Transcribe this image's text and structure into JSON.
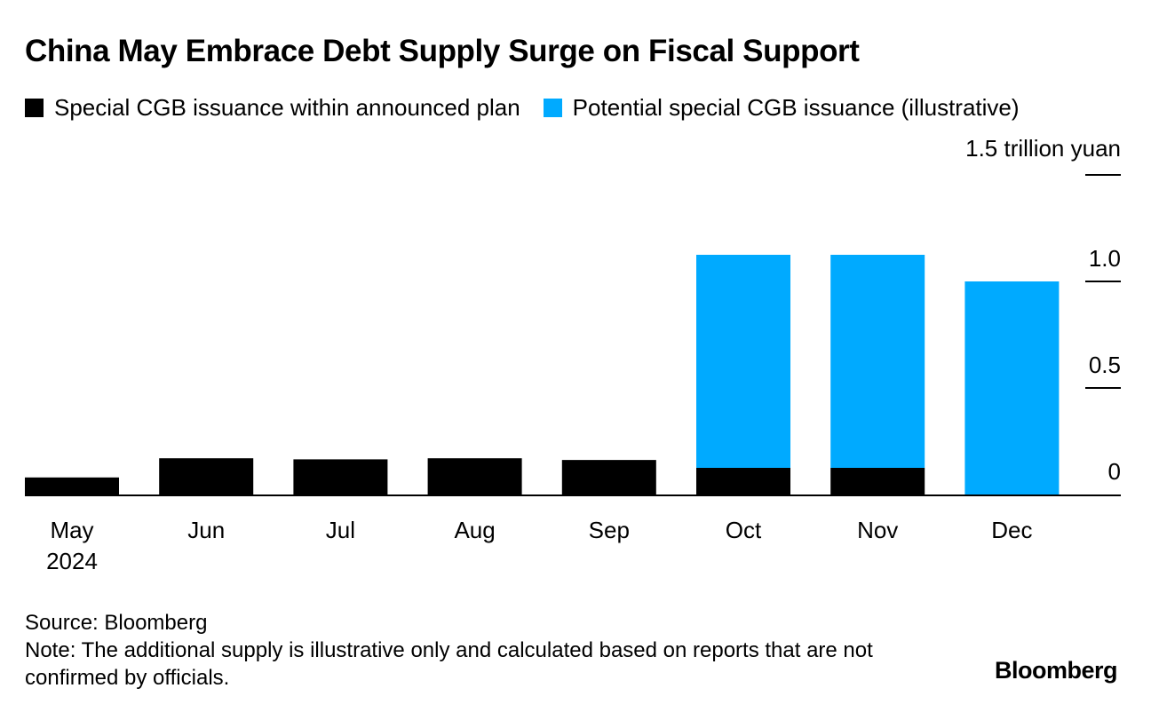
{
  "title": "China May Embrace Debt Supply Surge on Fiscal Support",
  "legend": [
    {
      "label": "Special CGB issuance within announced plan",
      "color": "#000000"
    },
    {
      "label": "Potential special CGB issuance (illustrative)",
      "color": "#00aaff"
    }
  ],
  "unit_label": "1.5 trillion yuan",
  "chart_data": {
    "type": "bar",
    "stacked": true,
    "categories": [
      "May",
      "Jun",
      "Jul",
      "Aug",
      "Sep",
      "Oct",
      "Nov",
      "Dec"
    ],
    "category_sublabels": [
      "2024",
      "",
      "",
      "",
      "",
      "",
      "",
      ""
    ],
    "series": [
      {
        "name": "Special CGB issuance within announced plan",
        "color": "#000000",
        "values": [
          0.08,
          0.17,
          0.165,
          0.17,
          0.162,
          0.125,
          0.125,
          0
        ]
      },
      {
        "name": "Potential special CGB issuance (illustrative)",
        "color": "#00aaff",
        "values": [
          0,
          0,
          0,
          0,
          0,
          1.0,
          1.0,
          1.0
        ]
      }
    ],
    "ylim": [
      0,
      1.5
    ],
    "yticks": [
      0,
      0.5,
      1.0,
      1.5
    ],
    "ytick_labels": [
      "0",
      "0.5",
      "1.0",
      "1.5 trillion yuan"
    ],
    "axis_position": "right"
  },
  "source": "Source: Bloomberg",
  "note": "Note: The additional supply is illustrative only and calculated based on reports that are not confirmed by officials.",
  "brand": "Bloomberg"
}
